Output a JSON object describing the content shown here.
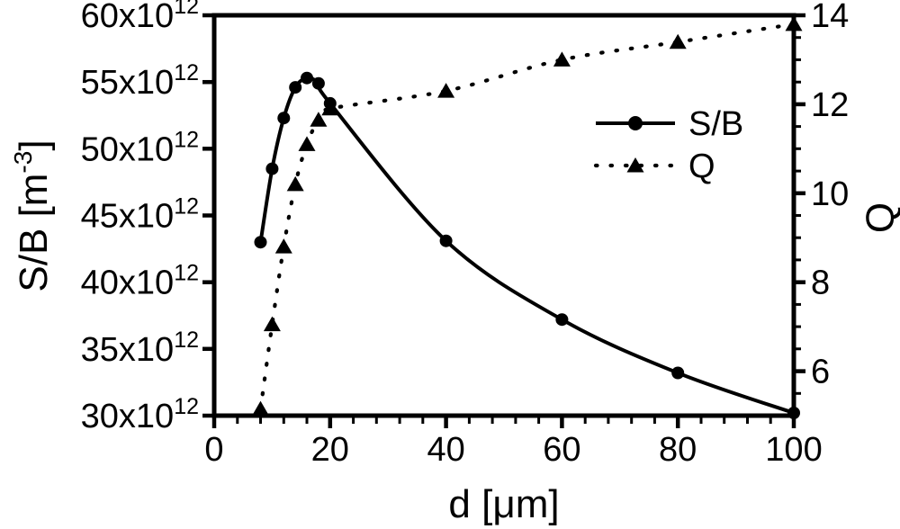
{
  "colors": {
    "foreground": "#000000",
    "background": "#ffffff"
  },
  "chart_data": {
    "type": "line",
    "title": "",
    "xlabel": "d [μm]",
    "ylabel_left": {
      "pre": "S/B [m",
      "sup": "-3",
      "post": "]"
    },
    "ylabel_right": "Q",
    "grid": false,
    "x_axis": {
      "min": 0,
      "max": 100,
      "major_ticks": [
        0,
        20,
        40,
        60,
        80,
        100
      ],
      "major_tick_labels": [
        "0",
        "20",
        "40",
        "60",
        "80",
        "100"
      ],
      "minor_step": 4
    },
    "y_left_axis": {
      "min": 30,
      "max": 60,
      "unit_multiplier_label": "x10",
      "unit_exponent": "12",
      "major_ticks": [
        30,
        35,
        40,
        45,
        50,
        55,
        60
      ],
      "major_tick_labels": [
        "30x10^12",
        "35x10^12",
        "40x10^12",
        "45x10^12",
        "50x10^12",
        "55x10^12",
        "60x10^12"
      ],
      "minor_step": null
    },
    "y_right_axis": {
      "min": 5,
      "max": 14,
      "major_ticks": [
        6,
        8,
        10,
        12,
        14
      ],
      "major_tick_labels": [
        "6",
        "8",
        "10",
        "12",
        "14"
      ],
      "minor_step": 0.5
    },
    "series": [
      {
        "name": "S/B",
        "axis": "left",
        "marker": "circle",
        "line_style": "solid",
        "y_units": "x10^12 m^-3",
        "x": [
          8,
          10,
          12,
          14,
          16,
          18,
          20,
          40,
          60,
          80,
          100
        ],
        "y": [
          43.0,
          48.5,
          52.3,
          54.6,
          55.3,
          54.9,
          53.4,
          43.1,
          37.2,
          33.2,
          30.2
        ]
      },
      {
        "name": "Q",
        "axis": "right",
        "marker": "triangle",
        "line_style": "dotted",
        "y_units": "",
        "x": [
          8,
          10,
          12,
          14,
          16,
          18,
          20,
          40,
          60,
          80,
          100
        ],
        "y": [
          5.15,
          7.05,
          8.8,
          10.2,
          11.1,
          11.65,
          11.9,
          12.3,
          13.0,
          13.4,
          13.8
        ]
      }
    ],
    "legend": {
      "position": "inside-upper-right",
      "items": [
        {
          "label": "S/B",
          "marker": "circle",
          "line_style": "solid"
        },
        {
          "label": "Q",
          "marker": "triangle",
          "line_style": "dotted"
        }
      ]
    }
  }
}
